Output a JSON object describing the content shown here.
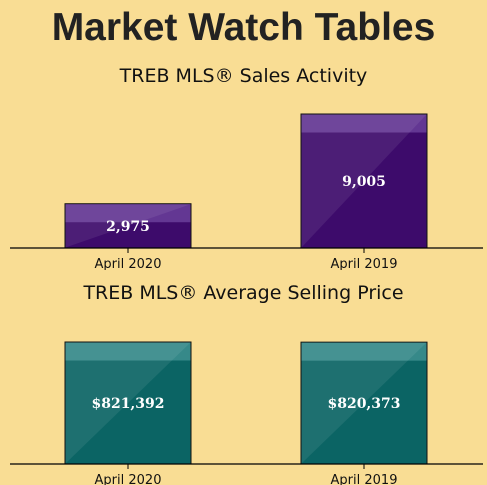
{
  "header": {
    "title": "Market Watch Tables"
  },
  "colors": {
    "background": "#f9dd94",
    "sales_bar": "#3d0b6b",
    "sales_bar_highlight": "#6a3f9a",
    "price_bar": "#0b6464",
    "price_bar_highlight": "#3e8f8f",
    "axis": "#000000"
  },
  "chart_data": [
    {
      "type": "bar",
      "title": "TREB MLS® Sales Activity",
      "categories": [
        "April 2020",
        "April 2019"
      ],
      "values": [
        2975,
        9005
      ],
      "data_labels": [
        "2,975",
        "9,005"
      ],
      "xlabel": "",
      "ylabel": "",
      "ylim": [
        0,
        9005
      ],
      "grid": false
    },
    {
      "type": "bar",
      "title": "TREB MLS® Average Selling Price",
      "categories": [
        "April 2020",
        "April 2019"
      ],
      "values": [
        821392,
        820373
      ],
      "data_labels": [
        "$821,392",
        "$820,373"
      ],
      "xlabel": "",
      "ylabel": "",
      "ylim": [
        0,
        821392
      ],
      "grid": false
    }
  ]
}
